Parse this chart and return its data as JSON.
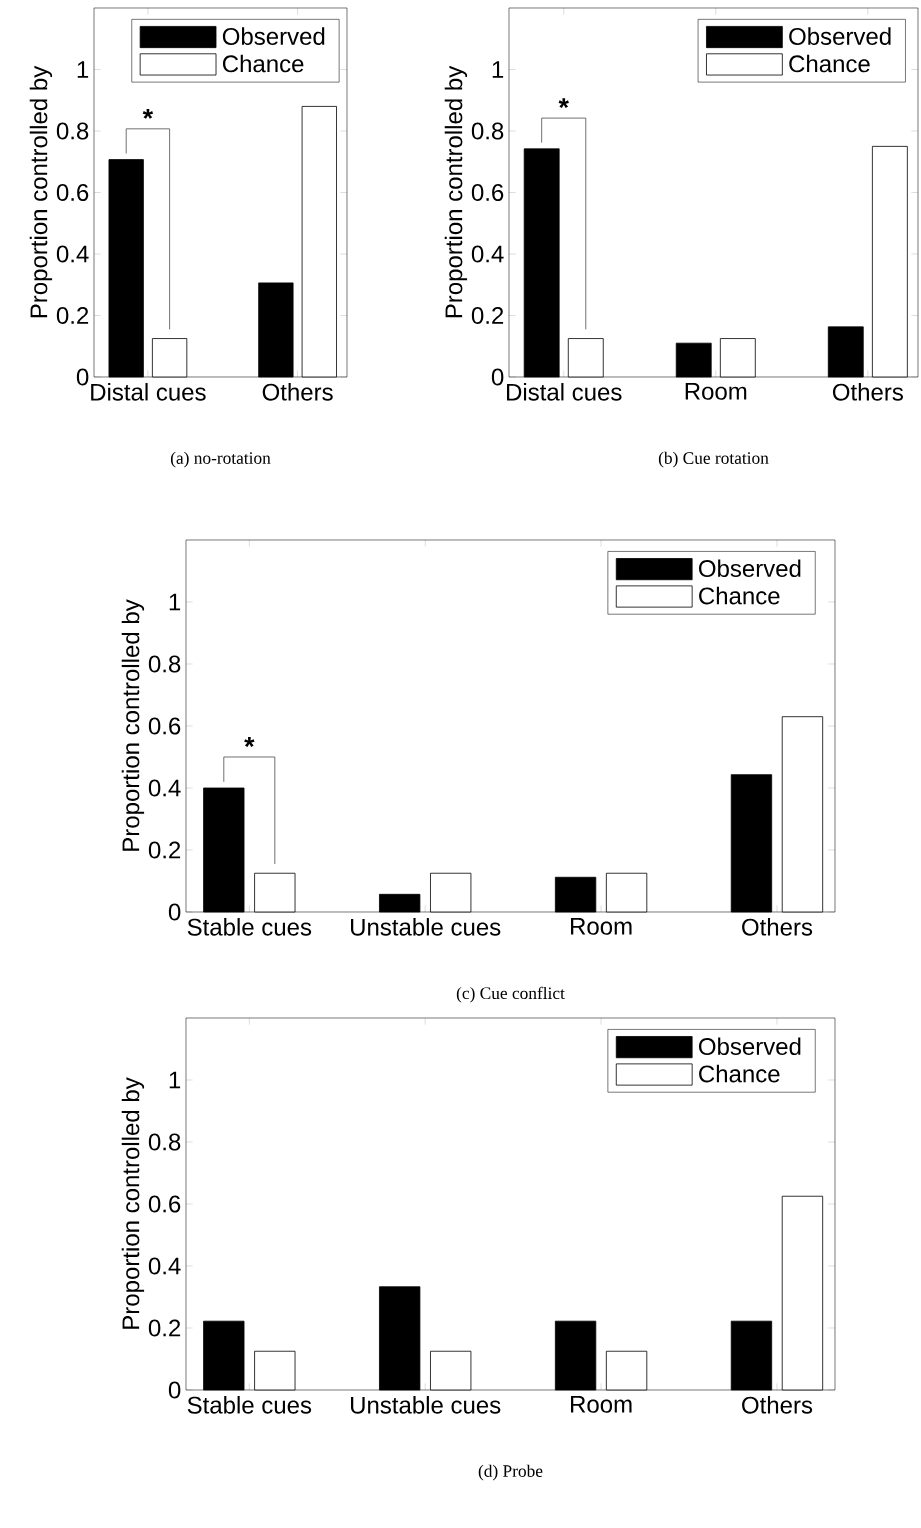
{
  "chart_data": [
    {
      "type": "bar",
      "title": "(a)  no-rotation",
      "ylabel": "Proportion controlled by",
      "categories": [
        "Distal cues",
        "Others"
      ],
      "series": [
        {
          "name": "Observed",
          "color": "#000000",
          "values": [
            0.707,
            0.306
          ]
        },
        {
          "name": "Chance",
          "color": "#ffffff",
          "values": [
            0.125,
            0.88
          ]
        }
      ],
      "ylim": [
        0,
        1.2
      ],
      "yticks": [
        0,
        0.2,
        0.4,
        0.6,
        0.8,
        1
      ],
      "legend": "top right",
      "annotations": [
        "*"
      ]
    },
    {
      "type": "bar",
      "title": "(b)  Cue rotation",
      "ylabel": "Proportion controlled by",
      "categories": [
        "Distal cues",
        "Room",
        "Others"
      ],
      "series": [
        {
          "name": "Observed",
          "color": "#000000",
          "values": [
            0.742,
            0.11,
            0.163
          ]
        },
        {
          "name": "Chance",
          "color": "#ffffff",
          "values": [
            0.125,
            0.125,
            0.75
          ]
        }
      ],
      "ylim": [
        0,
        1.2
      ],
      "yticks": [
        0,
        0.2,
        0.4,
        0.6,
        0.8,
        1
      ],
      "legend": "top right",
      "annotations": [
        "*"
      ]
    },
    {
      "type": "bar",
      "title": "(c)  Cue conflict",
      "ylabel": "Proportion controlled by",
      "categories": [
        "Stable cues",
        "Unstable cues",
        "Room",
        "Others"
      ],
      "series": [
        {
          "name": "Observed",
          "color": "#000000",
          "values": [
            0.4,
            0.057,
            0.112,
            0.443
          ]
        },
        {
          "name": "Chance",
          "color": "#ffffff",
          "values": [
            0.125,
            0.125,
            0.125,
            0.63
          ]
        }
      ],
      "ylim": [
        0,
        1.2
      ],
      "yticks": [
        0,
        0.2,
        0.4,
        0.6,
        0.8,
        1
      ],
      "legend": "top right",
      "annotations": [
        "*"
      ]
    },
    {
      "type": "bar",
      "title": "(d)  Probe",
      "ylabel": "Proportion controlled by",
      "categories": [
        "Stable cues",
        "Unstable cues",
        "Room",
        "Others"
      ],
      "series": [
        {
          "name": "Observed",
          "color": "#000000",
          "values": [
            0.222,
            0.333,
            0.222,
            0.222
          ]
        },
        {
          "name": "Chance",
          "color": "#ffffff",
          "values": [
            0.125,
            0.125,
            0.125,
            0.625
          ]
        }
      ],
      "ylim": [
        0,
        1.2
      ],
      "yticks": [
        0,
        0.2,
        0.4,
        0.6,
        0.8,
        1
      ],
      "legend": "top right"
    }
  ]
}
